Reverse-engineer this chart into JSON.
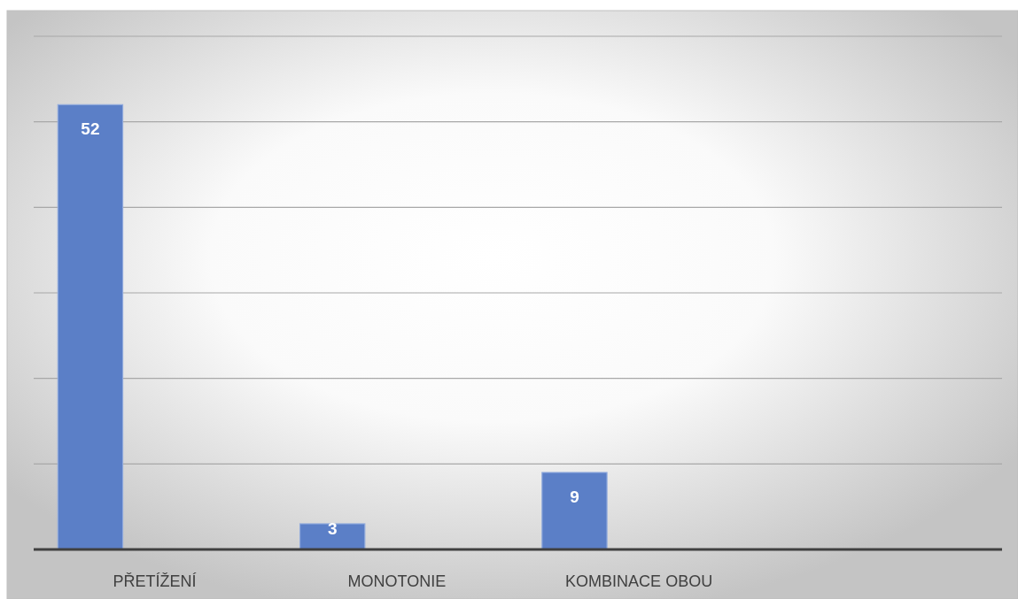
{
  "chart_data": {
    "type": "bar",
    "categories": [
      "PŘETÍŽENÍ",
      "MONOTONIE",
      "KOMBINACE OBOU",
      null
    ],
    "values": [
      52,
      3,
      9,
      null
    ],
    "color": "#5b7fc7",
    "ylim": [
      0,
      60
    ],
    "yticks": [
      {
        "value": 0,
        "label": null
      },
      {
        "value": 10,
        "label": null
      },
      {
        "value": 20,
        "label": null
      },
      {
        "value": 30,
        "label": null
      },
      {
        "value": 40,
        "label": null
      },
      {
        "value": 50,
        "label": null
      },
      {
        "value": 60,
        "label": null
      }
    ],
    "grid": "y",
    "data_labels": true,
    "tick_labels": "x"
  }
}
